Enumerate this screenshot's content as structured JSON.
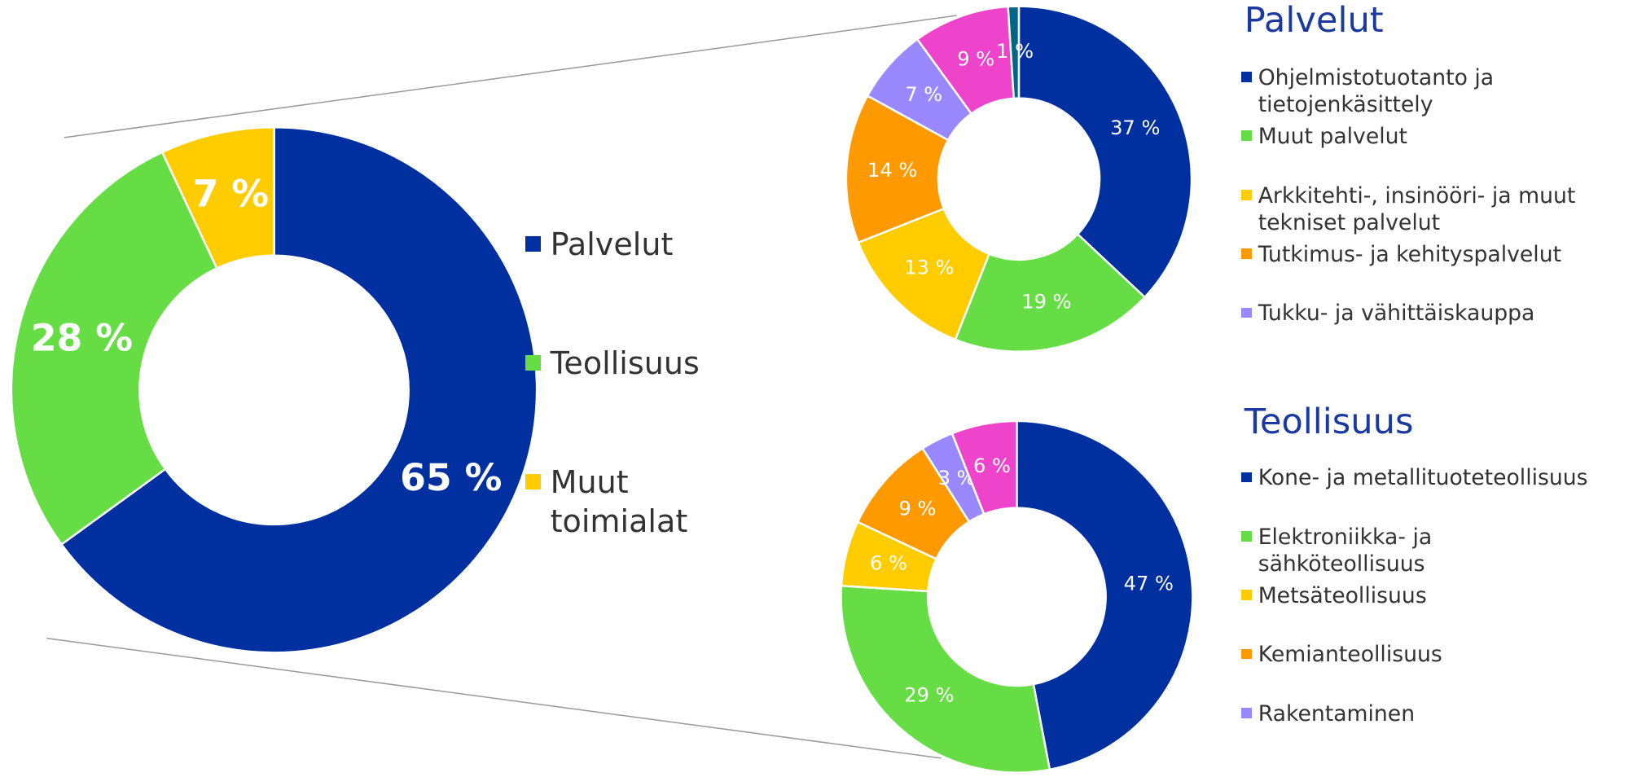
{
  "chart_data": [
    {
      "type": "donut",
      "categories": [
        "Palvelut",
        "Teollisuus",
        "Muut toimialat"
      ],
      "values": [
        65,
        28,
        7
      ],
      "value_labels": [
        "65 %",
        "28 %",
        "7 %"
      ],
      "colors": [
        "#002fa0",
        "#66dd44",
        "#ffcc00"
      ]
    },
    {
      "type": "donut",
      "title": "Palvelut",
      "categories": [
        "Ohjelmistotuotanto ja tietojenkäsittely",
        "Muut palvelut",
        "Arkkitehti-, insinööri- ja muut tekniset palvelut",
        "Tutkimus- ja kehityspalvelut",
        "Tukku- ja vähittäiskauppa",
        null,
        null
      ],
      "values": [
        37,
        19,
        13,
        14,
        7,
        9,
        1
      ],
      "value_labels": [
        "37 %",
        "19 %",
        "13 %",
        "14 %",
        "7 %",
        "9 %",
        "1 %"
      ],
      "colors": [
        "#002fa0",
        "#66dd44",
        "#ffcc00",
        "#ff9900",
        "#9988ff",
        "#ee44cc",
        "#006688"
      ]
    },
    {
      "type": "donut",
      "title": "Teollisuus",
      "categories": [
        "Kone- ja metallituoteteollisuus",
        "Elektroniikka- ja sähköteollisuus",
        "Metsäteollisuus",
        "Kemianteollisuus",
        "Rakentaminen",
        null
      ],
      "values": [
        47,
        29,
        6,
        9,
        3,
        6
      ],
      "value_labels": [
        "47 %",
        "29 %",
        "6 %",
        "9 %",
        "3 %",
        "6 %"
      ],
      "colors": [
        "#002fa0",
        "#66dd44",
        "#ffcc00",
        "#ff9900",
        "#9988ff",
        "#ee44cc"
      ]
    }
  ]
}
